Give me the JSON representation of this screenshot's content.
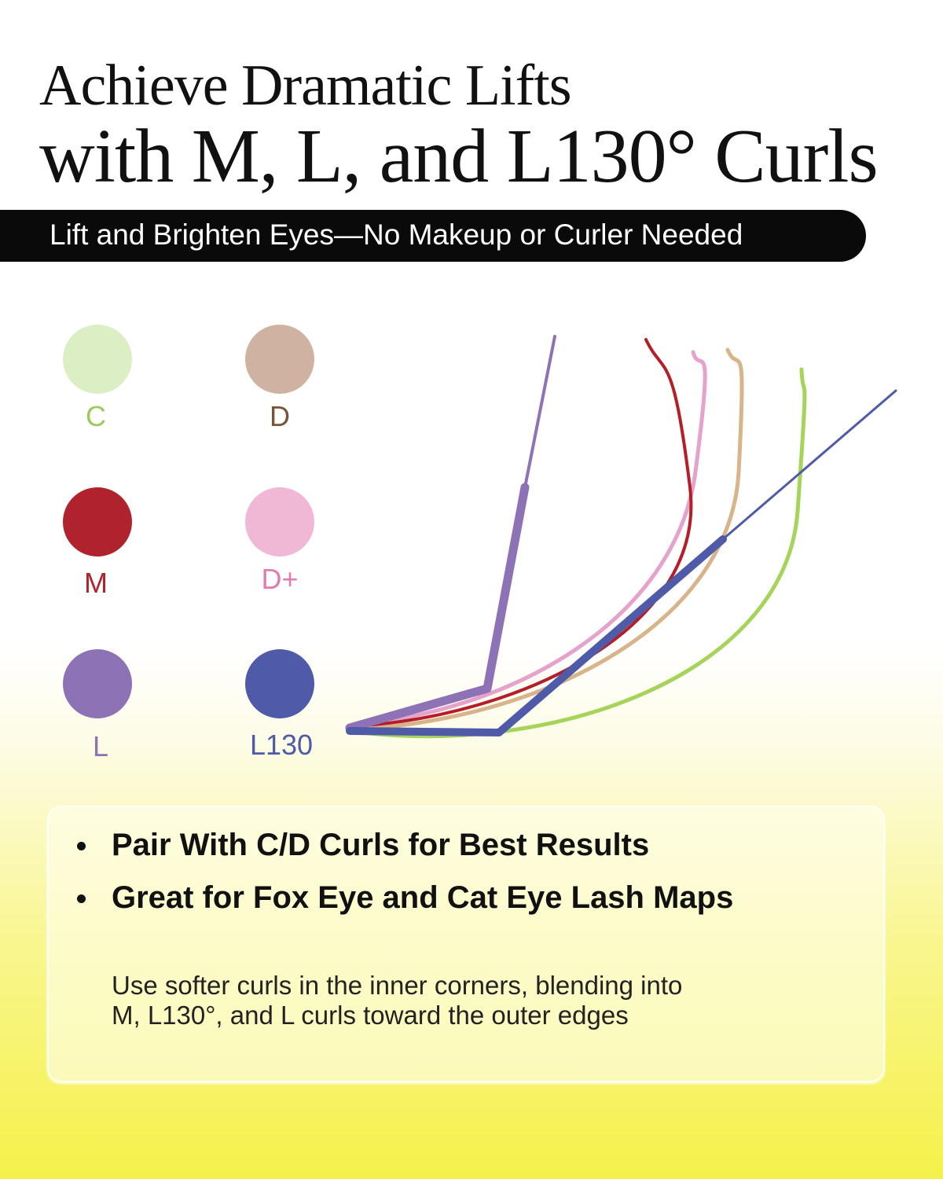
{
  "header": {
    "title_line1": "Achieve Dramatic Lifts",
    "title_line2": "with M, L, and L130° Curls",
    "banner": "Lift and Brighten Eyes—No Makeup or Curler Needed"
  },
  "curls": [
    {
      "label": "C",
      "swatch": "#dcefc4",
      "text_color": "#9cc95a",
      "line": "#a6d45a"
    },
    {
      "label": "D",
      "swatch": "#cfb2a0",
      "text_color": "#7a5535",
      "line": "#d8b48a"
    },
    {
      "label": "M",
      "swatch": "#b0222e",
      "text_color": "#b0222e",
      "line": "#b51e28"
    },
    {
      "label": "D+",
      "swatch": "#f0b8d4",
      "text_color": "#e07cb2",
      "line": "#e4a2cc"
    },
    {
      "label": "L",
      "swatch": "#8e72b6",
      "text_color": "#8e72b6",
      "line": "#8e72b6"
    },
    {
      "label": "L130",
      "swatch": "#4f5aa8",
      "text_color": "#4f5aa8",
      "line": "#4f5aa8"
    }
  ],
  "panel": {
    "bullets": [
      "Pair With C/D Curls for Best Results",
      "Great for Fox Eye and Cat Eye Lash Maps"
    ],
    "note_line1": "Use softer curls in the inner corners, blending into",
    "note_line2": "M, L130°, and L curls toward the outer edges"
  }
}
